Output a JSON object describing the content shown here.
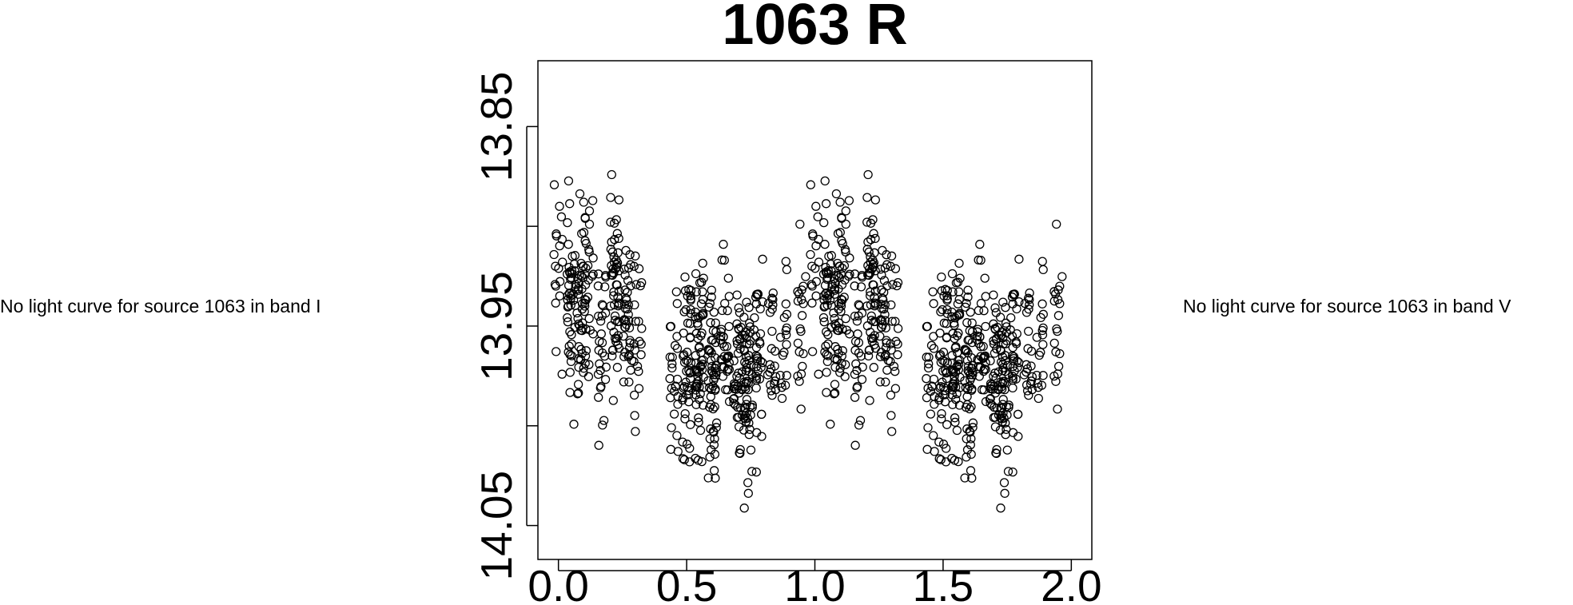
{
  "notes": {
    "left": "No light curve for source 1063 in band I",
    "right": "No light curve for source 1063 in band V"
  },
  "chart_data": {
    "type": "scatter",
    "title": "1063 R",
    "xlabel": "",
    "ylabel": "",
    "xlim": [
      -0.08,
      2.08
    ],
    "ylim": [
      14.067,
      13.817
    ],
    "y_reversed": true,
    "x_ticks": [
      0.0,
      0.5,
      1.0,
      1.5,
      2.0
    ],
    "x_tick_labels": [
      "0.0",
      "0.5",
      "1.0",
      "1.5",
      "2.0"
    ],
    "y_ticks": [
      13.85,
      13.9,
      13.95,
      14.0,
      14.05
    ],
    "y_tick_labels": [
      "13.85",
      "",
      "13.95",
      "",
      "14.05"
    ],
    "marker": "open-circle",
    "marker_color": "#000000",
    "grid": false,
    "legend": "none",
    "period_folded": true,
    "series": [
      {
        "phase_bins": [
          {
            "x": 0.0,
            "n": 18,
            "mean": 13.925,
            "spread": 0.055
          },
          {
            "x": 0.05,
            "n": 45,
            "mean": 13.94,
            "spread": 0.05
          },
          {
            "x": 0.09,
            "n": 50,
            "mean": 13.935,
            "spread": 0.055
          },
          {
            "x": 0.12,
            "n": 20,
            "mean": 13.94,
            "spread": 0.05
          },
          {
            "x": 0.17,
            "n": 28,
            "mean": 13.955,
            "spread": 0.055
          },
          {
            "x": 0.22,
            "n": 55,
            "mean": 13.93,
            "spread": 0.05
          },
          {
            "x": 0.27,
            "n": 38,
            "mean": 13.945,
            "spread": 0.05
          },
          {
            "x": 0.31,
            "n": 22,
            "mean": 13.955,
            "spread": 0.05
          },
          {
            "x": 0.45,
            "n": 25,
            "mean": 13.97,
            "spread": 0.055
          },
          {
            "x": 0.5,
            "n": 48,
            "mean": 13.965,
            "spread": 0.06
          },
          {
            "x": 0.55,
            "n": 60,
            "mean": 13.97,
            "spread": 0.055
          },
          {
            "x": 0.6,
            "n": 55,
            "mean": 13.975,
            "spread": 0.055
          },
          {
            "x": 0.65,
            "n": 35,
            "mean": 13.96,
            "spread": 0.055
          },
          {
            "x": 0.7,
            "n": 42,
            "mean": 13.97,
            "spread": 0.055
          },
          {
            "x": 0.74,
            "n": 55,
            "mean": 13.985,
            "spread": 0.05
          },
          {
            "x": 0.78,
            "n": 35,
            "mean": 13.965,
            "spread": 0.05
          },
          {
            "x": 0.83,
            "n": 22,
            "mean": 13.96,
            "spread": 0.05
          },
          {
            "x": 0.88,
            "n": 18,
            "mean": 13.96,
            "spread": 0.045
          },
          {
            "x": 0.95,
            "n": 20,
            "mean": 13.95,
            "spread": 0.045
          }
        ]
      }
    ]
  }
}
